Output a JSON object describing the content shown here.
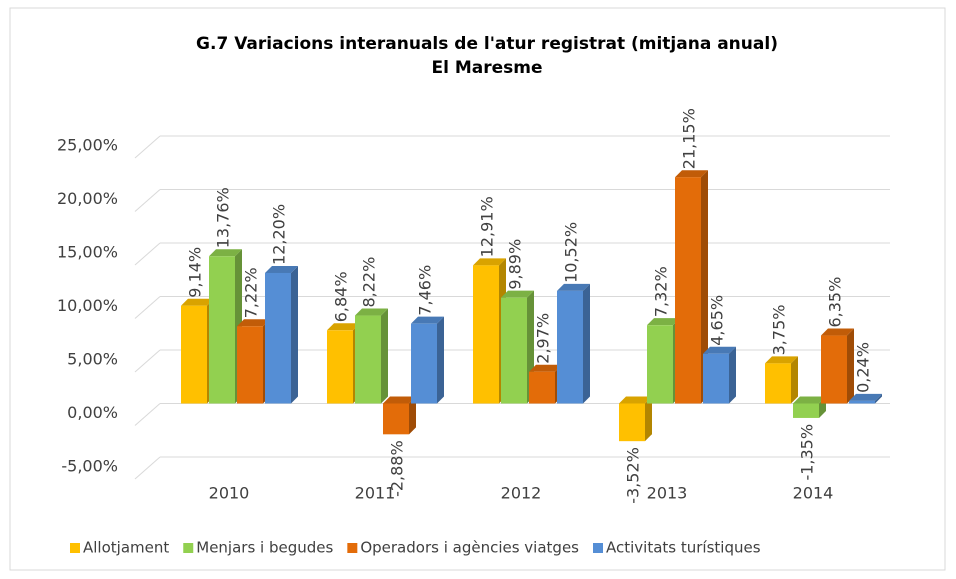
{
  "chart_data": {
    "type": "bar",
    "title": "G.7 Variacions interanuals de l'atur registrat (mitjana anual)",
    "subtitle": "El Maresme",
    "categories": [
      "2010",
      "2011",
      "2012",
      "2013",
      "2014"
    ],
    "series": [
      {
        "name": "Allotjament",
        "color": "#FFC000",
        "values": [
          9.14,
          6.84,
          12.91,
          -3.52,
          3.75
        ],
        "value_labels": [
          "9,14%",
          "6,84%",
          "12,91%",
          "-3,52%",
          "3,75%"
        ]
      },
      {
        "name": "Menjars i begudes",
        "color": "#92D050",
        "values": [
          13.76,
          8.22,
          9.89,
          7.32,
          -1.35
        ],
        "value_labels": [
          "13,76%",
          "8,22%",
          "9,89%",
          "7,32%",
          "-1,35%"
        ]
      },
      {
        "name": "Operadors i agències viatges",
        "color": "#E36C09",
        "values": [
          7.22,
          -2.88,
          2.97,
          21.15,
          6.35
        ],
        "value_labels": [
          "7,22%",
          "-2,88%",
          "2,97%",
          "21,15%",
          "6,35%"
        ]
      },
      {
        "name": "Activitats turístiques",
        "color": "#558ED5",
        "values": [
          12.2,
          7.46,
          10.52,
          4.65,
          0.24
        ],
        "value_labels": [
          "12,20%",
          "7,46%",
          "10,52%",
          "4,65%",
          "0,24%"
        ]
      }
    ],
    "ylim": [
      -5,
      25
    ],
    "yticks": [
      {
        "value": -5,
        "label": "-5,00%"
      },
      {
        "value": 0,
        "label": "0,00%"
      },
      {
        "value": 5,
        "label": "5,00%"
      },
      {
        "value": 10,
        "label": "10,00%"
      },
      {
        "value": 15,
        "label": "15,00%"
      },
      {
        "value": 20,
        "label": "20,00%"
      },
      {
        "value": 25,
        "label": "25,00%"
      }
    ],
    "grid": true,
    "legend": "bottom"
  }
}
